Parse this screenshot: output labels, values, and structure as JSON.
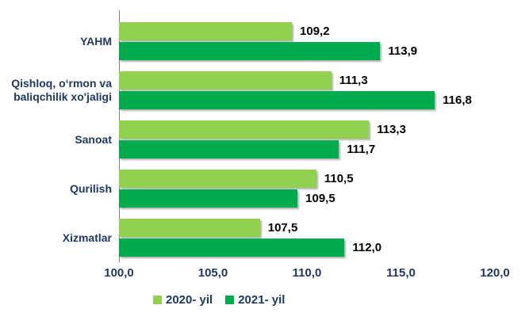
{
  "chart_data": {
    "type": "bar",
    "orientation": "horizontal",
    "title": "",
    "xlabel": "",
    "ylabel": "",
    "categories": [
      "YAHM",
      "Qishloq, oʻrmon va baliqchilik xo'jaligi",
      "Sanoat",
      "Qurilish",
      "Xizmatlar"
    ],
    "series": [
      {
        "name": "2020- yil",
        "color": "#92D050",
        "values": [
          109.2,
          111.3,
          113.3,
          110.5,
          107.5
        ],
        "labels": [
          "109,2",
          "111,3",
          "113,3",
          "110,5",
          "107,5"
        ]
      },
      {
        "name": "2021- yil",
        "color": "#00AC4E",
        "values": [
          113.9,
          116.8,
          111.7,
          109.5,
          112.0
        ],
        "labels": [
          "113,9",
          "116,8",
          "111,7",
          "109,5",
          "112,0"
        ]
      }
    ],
    "xlim": [
      100.0,
      120.0
    ],
    "x_ticks": [
      "100,0",
      "105,0",
      "110,0",
      "115,0",
      "120,0"
    ],
    "grid": false,
    "legend_position": "bottom",
    "value_labels_shown": true
  },
  "colors": {
    "category_label": "#1F3864",
    "tick_label": "#1F3864",
    "legend_label": "#1F3864",
    "value_label": "#000000",
    "axis_line": "#808080",
    "background": "#FFFFFF"
  }
}
